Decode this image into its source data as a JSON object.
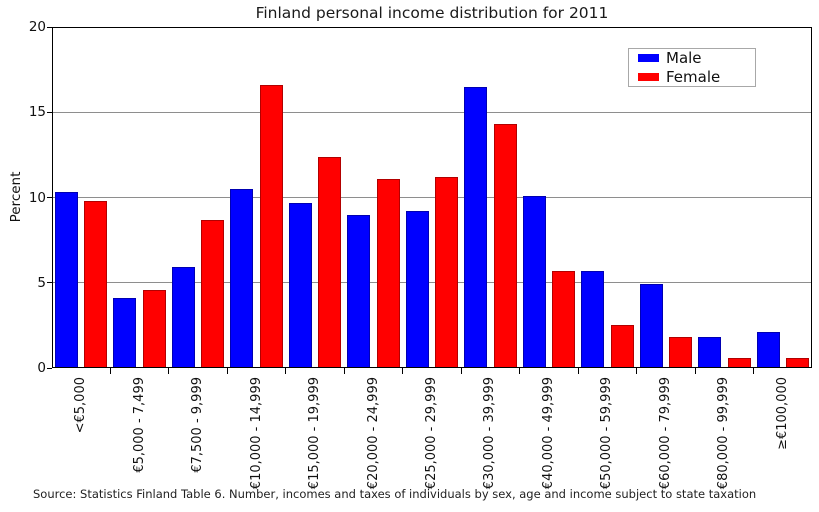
{
  "chart_data": {
    "type": "bar",
    "title": "Finland personal income distribution for 2011",
    "ylabel": "Percent",
    "ylim": [
      0,
      20
    ],
    "yticks": [
      0,
      5,
      10,
      15,
      20
    ],
    "grid": "horizontal gridlines at 5, 10 and 15; full black frame around plot",
    "legend_position": "upper right",
    "categories": [
      "<€5,000",
      "€5,000 - 7,499",
      "€7,500 - 9,999",
      "€10,000 - 14,999",
      "€15,000 - 19,999",
      "€20,000 - 24,999",
      "€25,000 - 29,999",
      "€30,000 - 39,999",
      "€40,000 - 49,999",
      "€50,000 - 59,999",
      "€60,000 - 79,999",
      "€80,000 - 99,999",
      "≥€100,000"
    ],
    "series": [
      {
        "name": "Male",
        "color": "#0000ff",
        "values": [
          10.3,
          4.1,
          5.9,
          10.5,
          9.7,
          9.0,
          9.2,
          16.5,
          10.1,
          5.7,
          4.9,
          1.8,
          2.1
        ]
      },
      {
        "name": "Female",
        "color": "#ff0000",
        "values": [
          9.8,
          4.6,
          8.7,
          16.6,
          12.4,
          11.1,
          11.2,
          14.3,
          5.7,
          2.5,
          1.8,
          0.6,
          0.6
        ]
      }
    ],
    "source": "Source: Statistics Finland Table 6. Number, incomes and taxes of individuals by sex, age and income subject to state taxation"
  }
}
